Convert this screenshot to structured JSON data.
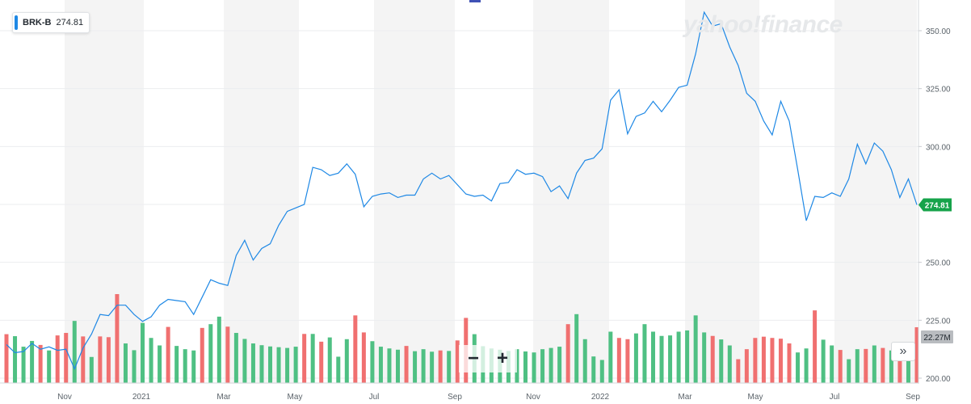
{
  "header": {
    "ticker": "BRK-B",
    "price": "274.81",
    "watermark": "yahoo!finance"
  },
  "colors": {
    "line": "#1e88e5",
    "volume_up": "#4fc083",
    "volume_down": "#f07070",
    "band": "#f4f4f4",
    "price_label_bg": "#16a34a",
    "volume_label_bg": "#b9bcc0"
  },
  "controls": {
    "zoom_out_label": "−",
    "zoom_in_label": "+",
    "scroll_label": "»"
  },
  "chart_data": {
    "type": "line",
    "y_ticks": [
      "350.00",
      "325.00",
      "300.00",
      "275.00",
      "250.00",
      "225.00",
      "200.00"
    ],
    "ylim": [
      200,
      358
    ],
    "x_ticks": [
      "Nov",
      "2021",
      "Mar",
      "May",
      "Jul",
      "Sep",
      "Nov",
      "2022",
      "Mar",
      "May",
      "Jul",
      "Sep"
    ],
    "current_price_label": "274.81",
    "current_volume_label": "22.27M",
    "series": [
      {
        "values": [
          214.5,
          211.0,
          211.5,
          215.0,
          212.5,
          213.5,
          212.0,
          212.5,
          204.0,
          213.0,
          219.0,
          227.5,
          227.0,
          231.5,
          231.5,
          227.5,
          224.5,
          226.5,
          231.5,
          234.0,
          233.5,
          233.0,
          227.5,
          235.0,
          242.5,
          241.0,
          240.0,
          253.0,
          259.5,
          251.0,
          256.0,
          258.0,
          266.0,
          272.0,
          273.5,
          275.0,
          291.0,
          290.0,
          287.5,
          288.5,
          292.5,
          288.0,
          274.0,
          278.5,
          279.5,
          280.0,
          278.0,
          279.0,
          279.0,
          286.0,
          288.5,
          286.0,
          287.5,
          283.5,
          279.5,
          278.5,
          279.0,
          276.5,
          284.0,
          284.5,
          290.0,
          288.0,
          288.5,
          287.0,
          280.5,
          283.0,
          277.5,
          288.5,
          294.0,
          295.0,
          299.0,
          320.0,
          324.5,
          305.5,
          313.0,
          314.5,
          319.5,
          315.0,
          320.0,
          325.5,
          326.5,
          340.0,
          358.0,
          352.0,
          353.0,
          343.0,
          335.0,
          323.0,
          319.5,
          311.0,
          305.0,
          319.5,
          311.0,
          290.0,
          268.0,
          278.5,
          278.0,
          280.0,
          278.5,
          286.0,
          301.0,
          292.5,
          301.5,
          298.0,
          290.0,
          278.0,
          286.0,
          274.81
        ]
      }
    ],
    "volume": {
      "values": [
        19.5,
        18.7,
        14.5,
        16.8,
        15.2,
        13.0,
        19.0,
        20.0,
        24.8,
        18.6,
        10.4,
        18.6,
        18.3,
        35.5,
        15.8,
        13.1,
        24.0,
        18.0,
        15.0,
        22.4,
        14.8,
        13.5,
        13.0,
        22.0,
        23.5,
        26.5,
        22.5,
        20.0,
        17.6,
        15.8,
        15.1,
        14.6,
        14.3,
        14.0,
        14.5,
        19.6,
        19.6,
        16.5,
        18.2,
        10.5,
        17.5,
        27.0,
        20.2,
        16.7,
        14.5,
        13.8,
        13.3,
        14.8,
        12.7,
        13.5,
        12.5,
        13.0,
        12.8,
        17.0,
        26.0,
        19.5,
        14.7,
        13.8,
        13.3,
        12.8,
        13.5,
        12.6,
        12.2,
        13.5,
        14.0,
        14.5,
        23.5,
        27.5,
        17.5,
        10.6,
        9.2,
        20.5,
        18.0,
        17.5,
        19.8,
        23.5,
        20.5,
        18.8,
        19.0,
        20.5,
        21.0,
        27.0,
        20.2,
        18.8,
        17.4,
        15.0,
        9.5,
        13.5,
        18.0,
        18.5,
        18.0,
        17.7,
        15.8,
        12.2,
        13.8,
        29.0,
        17.3,
        15.0,
        13.2,
        9.5,
        13.5,
        13.6,
        15.0,
        14.0,
        13.0,
        10.8,
        15.0,
        22.27
      ],
      "direction": [
        "d",
        "u",
        "u",
        "u",
        "d",
        "u",
        "d",
        "d",
        "u",
        "d",
        "u",
        "d",
        "d",
        "d",
        "u",
        "u",
        "u",
        "u",
        "u",
        "d",
        "u",
        "u",
        "u",
        "d",
        "u",
        "u",
        "d",
        "u",
        "u",
        "u",
        "u",
        "u",
        "u",
        "u",
        "u",
        "d",
        "u",
        "d",
        "u",
        "u",
        "u",
        "d",
        "d",
        "u",
        "u",
        "u",
        "u",
        "d",
        "u",
        "u",
        "u",
        "d",
        "u",
        "d",
        "d",
        "u",
        "u",
        "u",
        "u",
        "u",
        "u",
        "u",
        "u",
        "u",
        "u",
        "u",
        "d",
        "u",
        "u",
        "u",
        "u",
        "u",
        "d",
        "d",
        "u",
        "u",
        "u",
        "u",
        "u",
        "u",
        "u",
        "u",
        "u",
        "d",
        "u",
        "u",
        "d",
        "d",
        "d",
        "d",
        "d",
        "d",
        "d",
        "u",
        "u",
        "d",
        "u",
        "u",
        "d",
        "u",
        "u",
        "d",
        "u",
        "d",
        "u",
        "d",
        "u",
        "d"
      ]
    }
  }
}
